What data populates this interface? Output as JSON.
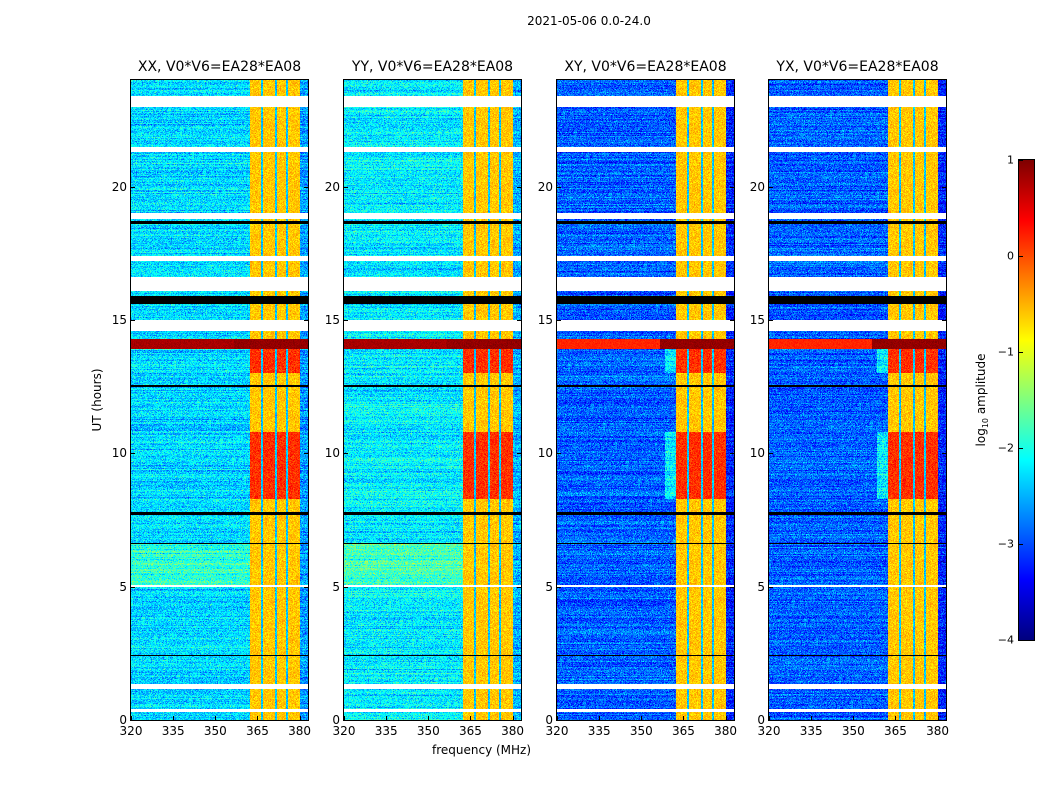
{
  "chart_data": {
    "type": "heatmap",
    "title": "2021-05-06 0.0-24.0",
    "xlabel": "frequency (MHz)",
    "ylabel": "UT (hours)",
    "xlim": [
      320,
      383
    ],
    "ylim": [
      0,
      24
    ],
    "xticks": [
      320,
      335,
      350,
      365,
      380
    ],
    "yticks": [
      0,
      5,
      10,
      15,
      20
    ],
    "panels": [
      {
        "title": "XX, V0*V6=EA28*EA08",
        "background_log_amp": -2.3,
        "band_log_amp": -0.6,
        "flare_log_amp": 0.8
      },
      {
        "title": "YY, V0*V6=EA28*EA08",
        "background_log_amp": -2.2,
        "band_log_amp": -0.6,
        "flare_log_amp": 0.8
      },
      {
        "title": "XY, V0*V6=EA28*EA08",
        "background_log_amp": -2.9,
        "band_log_amp": -0.6,
        "flare_log_amp": 0.2
      },
      {
        "title": "YX, V0*V6=EA28*EA08",
        "background_log_amp": -2.9,
        "band_log_amp": -0.6,
        "flare_log_amp": 0.2
      }
    ],
    "rfi_band_mhz": [
      362.5,
      380
    ],
    "rfi_subband_gaps_mhz": [
      366.5,
      371.5,
      375.5
    ],
    "bright_time_ranges_hours": [
      [
        8.3,
        10.8
      ],
      [
        13.0,
        14.0
      ]
    ],
    "strong_rows_hours": [
      13.9,
      14.3
    ],
    "flagged_time_ranges_hours": [
      [
        23.0,
        23.4
      ],
      [
        21.3,
        21.5
      ],
      [
        18.8,
        19.0
      ],
      [
        17.2,
        17.4
      ],
      [
        16.1,
        16.6
      ],
      [
        14.6,
        15.0
      ],
      [
        5.0,
        5.05
      ],
      [
        1.15,
        1.35
      ],
      [
        0.3,
        0.42
      ]
    ],
    "zero_rows_hours": [
      [
        15.6,
        15.9
      ],
      [
        18.6,
        18.7
      ],
      [
        7.7,
        7.8
      ],
      [
        12.5,
        12.55
      ],
      [
        6.6,
        6.65
      ],
      [
        2.4,
        2.45
      ]
    ],
    "colorbar": {
      "label": "log10 amplitude",
      "label_main": "log",
      "label_sub": "10",
      "label_rest": " amplitude",
      "range": [
        -4,
        1
      ],
      "ticks": [
        "1",
        "0",
        "−1",
        "−2",
        "−3",
        "−4"
      ],
      "tick_values": [
        1,
        0,
        -1,
        -2,
        -3,
        -4
      ],
      "colormap": "jet"
    }
  }
}
